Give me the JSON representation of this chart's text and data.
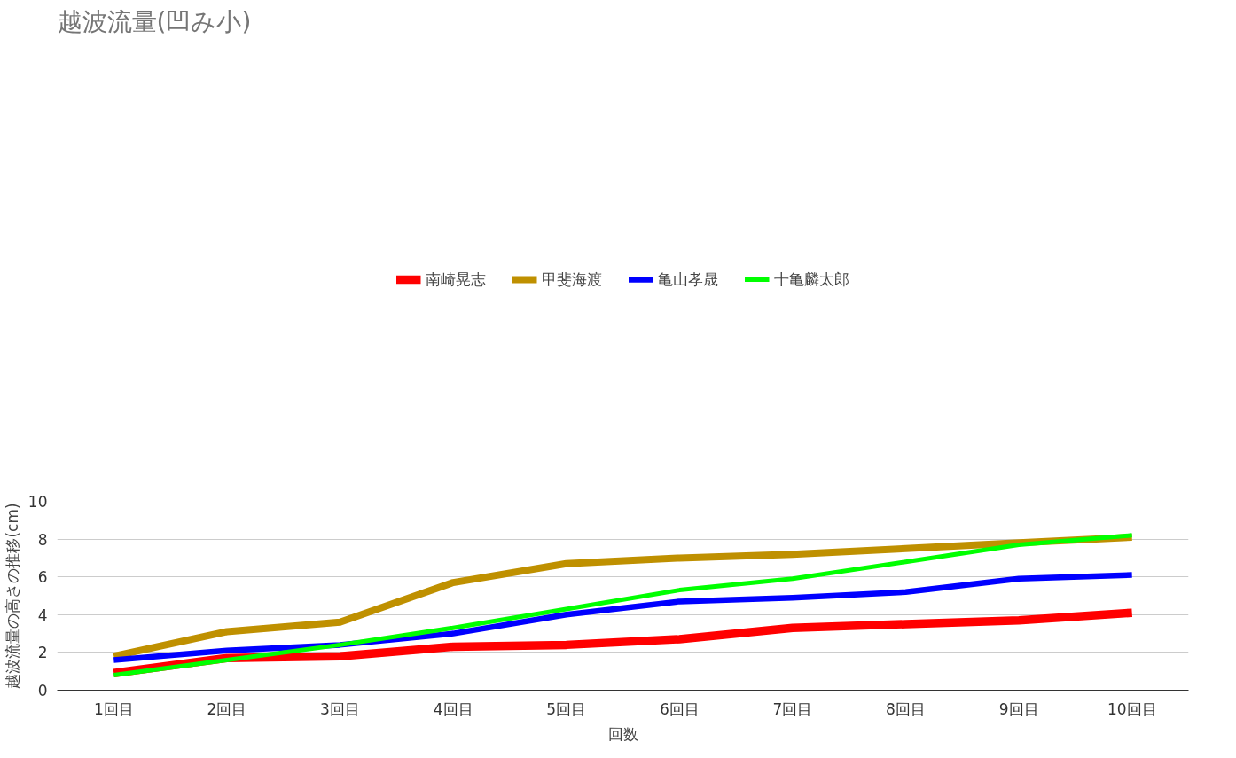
{
  "chart_data": {
    "type": "line",
    "title": "越波流量(凹み小)",
    "xlabel": "回数",
    "ylabel": "越波流量の高さの推移(cm)",
    "categories": [
      "1回目",
      "2回目",
      "3回目",
      "4回目",
      "5回目",
      "6回目",
      "7回目",
      "8回目",
      "9回目",
      "10回目"
    ],
    "series": [
      {
        "name": "南崎晃志",
        "color": "#ff0000",
        "values": [
          0.9,
          1.7,
          1.8,
          2.3,
          2.4,
          2.7,
          3.3,
          3.5,
          3.7,
          4.1
        ]
      },
      {
        "name": "甲斐海渡",
        "color": "#bf9000",
        "values": [
          1.8,
          3.1,
          3.6,
          5.7,
          6.7,
          7.0,
          7.2,
          7.5,
          7.8,
          8.1
        ]
      },
      {
        "name": "亀山孝晟",
        "color": "#0000ff",
        "values": [
          1.6,
          2.1,
          2.4,
          3.0,
          4.0,
          4.7,
          4.9,
          5.2,
          5.9,
          6.1
        ]
      },
      {
        "name": "十亀麟太郎",
        "color": "#00ff00",
        "values": [
          0.8,
          1.6,
          2.4,
          3.3,
          4.3,
          5.3,
          5.9,
          6.8,
          7.7,
          8.2
        ]
      }
    ],
    "ylim": [
      0,
      10
    ],
    "yticks": [
      0,
      2,
      4,
      6,
      8,
      10
    ],
    "grid": "y",
    "legend": "top",
    "marker": "none",
    "line_style": "solid"
  }
}
